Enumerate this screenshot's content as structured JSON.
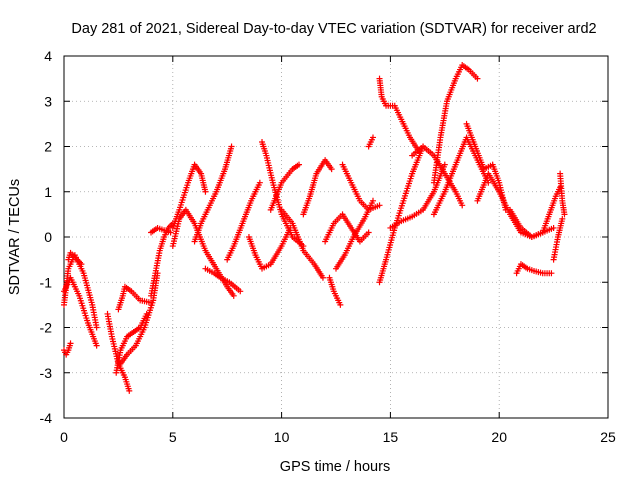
{
  "chart_data": {
    "type": "scatter",
    "title": "Day 281 of 2021, Sidereal Day-to-day VTEC variation (SDTVAR) for receiver ard2",
    "xlabel": "GPS time / hours",
    "ylabel": "SDTVAR / TECUs",
    "xlim": [
      0,
      25
    ],
    "ylim": [
      -4,
      4
    ],
    "xticks": [
      0,
      5,
      10,
      15,
      20,
      25
    ],
    "yticks": [
      -4,
      -3,
      -2,
      -1,
      0,
      1,
      2,
      3,
      4
    ],
    "xtick_labels": [
      "0",
      "5",
      "10",
      "15",
      "20",
      "25"
    ],
    "ytick_labels": [
      "-4",
      "-3",
      "-2",
      "-1",
      "0",
      "1",
      "2",
      "3",
      "4"
    ],
    "grid": true,
    "marker": "+",
    "color": "#ff0000",
    "series": [
      {
        "name": "track-1",
        "x": [
          0.0,
          0.2,
          0.5,
          0.9,
          1.3,
          1.5
        ],
        "y": [
          -1.5,
          -0.7,
          -0.4,
          -0.8,
          -1.5,
          -2.0
        ]
      },
      {
        "name": "track-2",
        "x": [
          0.0,
          0.3,
          0.7,
          1.1,
          1.5
        ],
        "y": [
          -1.2,
          -0.9,
          -1.3,
          -1.9,
          -2.4
        ]
      },
      {
        "name": "track-3",
        "x": [
          0.0,
          0.1,
          0.2,
          0.3
        ],
        "y": [
          -2.5,
          -2.6,
          -2.5,
          -2.35
        ]
      },
      {
        "name": "track-4",
        "x": [
          0.2,
          0.3,
          0.6,
          0.8
        ],
        "y": [
          -0.5,
          -0.35,
          -0.5,
          -0.6
        ]
      },
      {
        "name": "track-5",
        "x": [
          2.0,
          2.2,
          2.5,
          2.8,
          3.0
        ],
        "y": [
          -1.7,
          -2.2,
          -2.8,
          -3.1,
          -3.4
        ]
      },
      {
        "name": "track-6",
        "x": [
          2.5,
          2.7,
          2.8,
          3.1,
          3.5,
          4.0
        ],
        "y": [
          -1.6,
          -1.3,
          -1.1,
          -1.2,
          -1.4,
          -1.45
        ]
      },
      {
        "name": "track-7",
        "x": [
          2.4,
          2.6,
          2.9,
          3.2,
          3.5,
          3.8
        ],
        "y": [
          -3.0,
          -2.5,
          -2.2,
          -2.1,
          -2.0,
          -1.7
        ]
      },
      {
        "name": "track-8",
        "x": [
          2.6,
          2.9,
          3.3,
          3.7,
          4.1,
          4.3
        ],
        "y": [
          -2.8,
          -2.6,
          -2.4,
          -2.0,
          -1.4,
          -0.8
        ]
      },
      {
        "name": "track-9",
        "x": [
          4.0,
          4.2,
          4.4,
          4.6,
          4.8,
          5.0
        ],
        "y": [
          -1.3,
          -0.8,
          -0.3,
          0.0,
          0.2,
          0.3
        ]
      },
      {
        "name": "track-10",
        "x": [
          4.0,
          4.3,
          4.6,
          4.9
        ],
        "y": [
          0.1,
          0.2,
          0.15,
          0.1
        ]
      },
      {
        "name": "track-11",
        "x": [
          5.0,
          5.3,
          5.7,
          6.0,
          6.3,
          6.5
        ],
        "y": [
          0.2,
          0.6,
          1.2,
          1.6,
          1.4,
          1.0
        ]
      },
      {
        "name": "track-12",
        "x": [
          5.0,
          5.3,
          5.6,
          6.0,
          6.5,
          7.0,
          7.5,
          7.8
        ],
        "y": [
          -0.2,
          0.4,
          0.6,
          0.3,
          -0.3,
          -0.7,
          -1.1,
          -1.3
        ]
      },
      {
        "name": "track-13",
        "x": [
          6.0,
          6.3,
          6.6,
          7.0,
          7.4,
          7.7
        ],
        "y": [
          -0.1,
          0.3,
          0.6,
          1.0,
          1.5,
          2.0
        ]
      },
      {
        "name": "track-14",
        "x": [
          6.5,
          6.9,
          7.2,
          7.6,
          8.1
        ],
        "y": [
          -0.7,
          -0.8,
          -0.9,
          -1.0,
          -1.2
        ]
      },
      {
        "name": "track-15",
        "x": [
          7.5,
          7.8,
          8.2,
          8.6,
          9.0
        ],
        "y": [
          -0.5,
          -0.2,
          0.3,
          0.8,
          1.2
        ]
      },
      {
        "name": "track-16",
        "x": [
          8.5,
          8.8,
          9.1,
          9.5,
          10.0,
          10.4
        ],
        "y": [
          0.0,
          -0.4,
          -0.7,
          -0.6,
          -0.2,
          0.2
        ]
      },
      {
        "name": "track-17",
        "x": [
          9.1,
          9.3,
          9.6,
          10.0,
          10.5,
          11.0
        ],
        "y": [
          2.1,
          1.8,
          1.2,
          0.5,
          0.0,
          -0.2
        ]
      },
      {
        "name": "track-18",
        "x": [
          9.5,
          10.0,
          10.5,
          10.8
        ],
        "y": [
          0.6,
          1.2,
          1.5,
          1.6
        ]
      },
      {
        "name": "track-19",
        "x": [
          10.0,
          10.5,
          11.0,
          11.5,
          11.9
        ],
        "y": [
          0.6,
          0.3,
          -0.3,
          -0.6,
          -0.9
        ]
      },
      {
        "name": "track-20",
        "x": [
          11.0,
          11.3,
          11.6,
          12.0,
          12.3
        ],
        "y": [
          0.5,
          0.9,
          1.4,
          1.7,
          1.5
        ]
      },
      {
        "name": "track-21",
        "x": [
          12.0,
          12.4,
          12.8,
          13.2,
          13.6,
          14.0
        ],
        "y": [
          -0.1,
          0.3,
          0.5,
          0.2,
          -0.1,
          0.1
        ]
      },
      {
        "name": "track-22",
        "x": [
          12.2,
          12.4,
          12.6,
          12.7
        ],
        "y": [
          -0.9,
          -1.2,
          -1.4,
          -1.5
        ]
      },
      {
        "name": "track-23",
        "x": [
          12.8,
          13.2,
          13.6,
          14.0,
          14.5
        ],
        "y": [
          1.6,
          1.2,
          0.8,
          0.6,
          0.7
        ]
      },
      {
        "name": "track-24",
        "x": [
          12.5,
          12.9,
          13.3,
          13.8,
          14.2
        ],
        "y": [
          -0.7,
          -0.4,
          0.0,
          0.4,
          0.8
        ]
      },
      {
        "name": "track-25",
        "x": [
          14.0,
          14.1,
          14.2
        ],
        "y": [
          2.0,
          2.1,
          2.2
        ]
      },
      {
        "name": "track-26",
        "x": [
          14.5,
          14.6,
          14.8,
          15.2,
          15.5,
          15.9,
          16.3
        ],
        "y": [
          3.5,
          3.1,
          2.9,
          2.9,
          2.6,
          2.2,
          1.9
        ]
      },
      {
        "name": "track-27",
        "x": [
          14.5,
          14.8,
          15.2,
          15.6,
          16.0,
          16.5
        ],
        "y": [
          -1.0,
          -0.5,
          0.2,
          0.8,
          1.4,
          2.0
        ]
      },
      {
        "name": "track-28",
        "x": [
          15.0,
          15.5,
          16.0,
          16.5,
          17.0,
          17.5
        ],
        "y": [
          0.2,
          0.35,
          0.45,
          0.6,
          1.0,
          1.6
        ]
      },
      {
        "name": "track-29",
        "x": [
          16.0,
          16.5,
          17.0,
          17.5,
          18.0,
          18.3
        ],
        "y": [
          1.8,
          2.0,
          1.8,
          1.4,
          1.0,
          0.7
        ]
      },
      {
        "name": "track-30",
        "x": [
          17.0,
          17.3,
          17.6,
          18.0,
          18.3,
          18.6,
          19.0
        ],
        "y": [
          1.2,
          2.2,
          3.0,
          3.5,
          3.8,
          3.7,
          3.5
        ]
      },
      {
        "name": "track-31",
        "x": [
          17.0,
          17.5,
          18.0,
          18.5,
          19.0,
          19.5
        ],
        "y": [
          0.5,
          1.0,
          1.6,
          2.2,
          1.7,
          1.2
        ]
      },
      {
        "name": "track-32",
        "x": [
          18.5,
          18.9,
          19.3,
          19.7,
          20.0,
          20.3
        ],
        "y": [
          2.5,
          2.0,
          1.5,
          1.6,
          1.2,
          0.6
        ]
      },
      {
        "name": "track-33",
        "x": [
          19.0,
          19.5,
          20.0,
          20.5,
          21.0,
          21.5,
          22.0,
          22.5
        ],
        "y": [
          0.8,
          1.4,
          1.0,
          0.5,
          0.1,
          0.0,
          0.1,
          0.2
        ]
      },
      {
        "name": "track-34",
        "x": [
          20.5,
          21.0,
          21.5,
          22.0,
          22.3,
          22.6,
          22.8
        ],
        "y": [
          0.6,
          0.2,
          0.0,
          0.1,
          0.5,
          0.9,
          1.1
        ]
      },
      {
        "name": "track-35",
        "x": [
          20.8,
          21.0,
          21.3,
          21.6,
          22.0,
          22.4
        ],
        "y": [
          -0.8,
          -0.6,
          -0.7,
          -0.75,
          -0.8,
          -0.8
        ]
      },
      {
        "name": "track-36",
        "x": [
          22.5,
          22.7,
          22.9
        ],
        "y": [
          -0.5,
          0.0,
          0.4
        ]
      },
      {
        "name": "track-37",
        "x": [
          22.8,
          22.9,
          23.0
        ],
        "y": [
          1.4,
          0.8,
          0.5
        ]
      }
    ]
  }
}
